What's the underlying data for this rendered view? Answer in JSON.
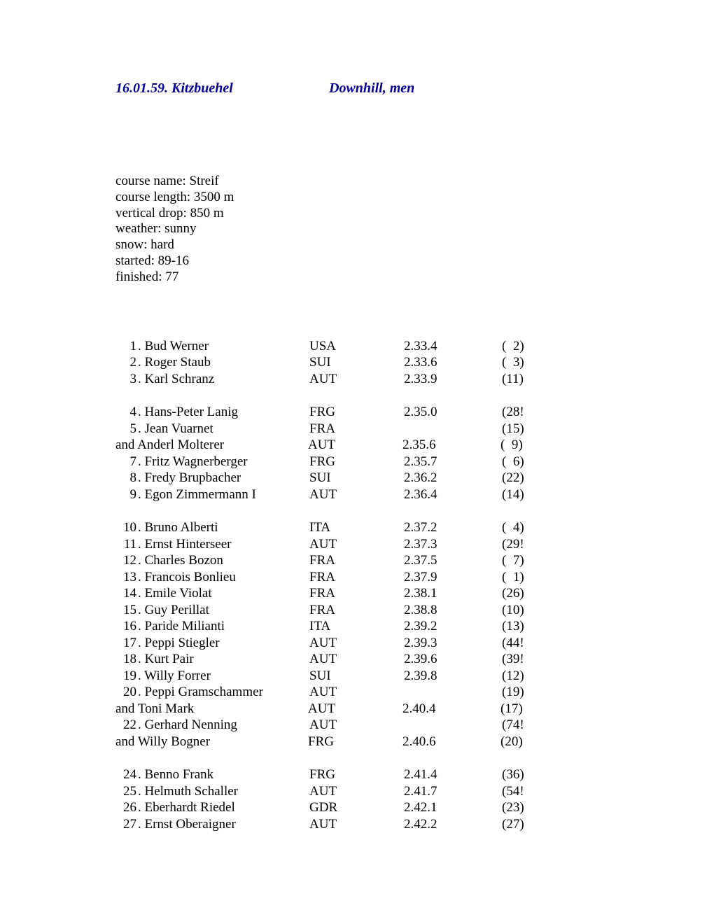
{
  "header": {
    "left": "16.01.59. Kitzbuehel",
    "right": "Downhill, men"
  },
  "course_info": [
    "course name: Streif",
    "course length: 3500 m",
    "vertical drop: 850 m",
    "weather: sunny",
    "snow: hard",
    "started: 89-16",
    "finished: 77"
  ],
  "results": [
    {
      "rank": "  1",
      "name": ". Bud Werner",
      "nation": "USA",
      "time": "2.33.4",
      "bib": "(  2)"
    },
    {
      "rank": "  2",
      "name": ". Roger Staub",
      "nation": "SUI",
      "time": "2.33.6",
      "bib": "(  3)"
    },
    {
      "rank": "  3",
      "name": ". Karl Schranz",
      "nation": "AUT",
      "time": "2.33.9",
      "bib": "(11)"
    },
    {
      "spacer": true
    },
    {
      "rank": "  4",
      "name": ". Hans-Peter Lanig",
      "nation": "FRG",
      "time": "2.35.0",
      "bib": "(28!"
    },
    {
      "rank": "  5",
      "name": ". Jean Vuarnet",
      "nation": "FRA",
      "time": "",
      "bib": "(15)"
    },
    {
      "rank": "and",
      "name": " Anderl Molterer",
      "nation": "AUT",
      "time": "2.35.6",
      "bib": "(  9)",
      "and": true
    },
    {
      "rank": "  7",
      "name": ". Fritz Wagnerberger",
      "nation": "FRG",
      "time": "2.35.7",
      "bib": "(  6)"
    },
    {
      "rank": "  8",
      "name": ". Fredy Brupbacher",
      "nation": "SUI",
      "time": "2.36.2",
      "bib": "(22)"
    },
    {
      "rank": "  9",
      "name": ". Egon Zimmermann I",
      "nation": "AUT",
      "time": "2.36.4",
      "bib": "(14)"
    },
    {
      "spacer": true
    },
    {
      "rank": "10",
      "name": ". Bruno Alberti",
      "nation": "ITA",
      "time": "2.37.2",
      "bib": "(  4)"
    },
    {
      "rank": "11",
      "name": ". Ernst Hinterseer",
      "nation": "AUT",
      "time": "2.37.3",
      "bib": "(29!"
    },
    {
      "rank": "12",
      "name": ". Charles Bozon",
      "nation": "FRA",
      "time": "2.37.5",
      "bib": "(  7)"
    },
    {
      "rank": "13",
      "name": ". Francois Bonlieu",
      "nation": "FRA",
      "time": "2.37.9",
      "bib": "(  1)"
    },
    {
      "rank": "14",
      "name": ". Emile Violat",
      "nation": "FRA",
      "time": "2.38.1",
      "bib": "(26)"
    },
    {
      "rank": "15",
      "name": ". Guy Perillat",
      "nation": "FRA",
      "time": "2.38.8",
      "bib": "(10)"
    },
    {
      "rank": "16",
      "name": ". Paride Milianti",
      "nation": "ITA",
      "time": "2.39.2",
      "bib": "(13)"
    },
    {
      "rank": "17",
      "name": ". Peppi Stiegler",
      "nation": "AUT",
      "time": "2.39.3",
      "bib": "(44!"
    },
    {
      "rank": "18",
      "name": ". Kurt Pair",
      "nation": "AUT",
      "time": "2.39.6",
      "bib": "(39!"
    },
    {
      "rank": "19",
      "name": ". Willy Forrer",
      "nation": "SUI",
      "time": "2.39.8",
      "bib": "(12)"
    },
    {
      "rank": "20",
      "name": ". Peppi Gramschammer",
      "nation": "AUT",
      "time": "",
      "bib": "(19)"
    },
    {
      "rank": "and",
      "name": " Toni Mark",
      "nation": "AUT",
      "time": "2.40.4",
      "bib": "(17)",
      "and": true
    },
    {
      "rank": "22",
      "name": ". Gerhard Nenning",
      "nation": "AUT",
      "time": "",
      "bib": "(74!"
    },
    {
      "rank": "and",
      "name": " Willy Bogner",
      "nation": "FRG",
      "time": "2.40.6",
      "bib": "(20)",
      "and": true
    },
    {
      "spacer": true
    },
    {
      "rank": "24",
      "name": ". Benno Frank",
      "nation": "FRG",
      "time": "2.41.4",
      "bib": "(36)"
    },
    {
      "rank": "25",
      "name": ". Helmuth Schaller",
      "nation": "AUT",
      "time": "2.41.7",
      "bib": "(54!"
    },
    {
      "rank": "26",
      "name": ". Eberhardt Riedel",
      "nation": "GDR",
      "time": "2.42.1",
      "bib": "(23)"
    },
    {
      "rank": "27",
      "name": ". Ernst Oberaigner",
      "nation": "AUT",
      "time": "2.42.2",
      "bib": "(27)"
    }
  ]
}
